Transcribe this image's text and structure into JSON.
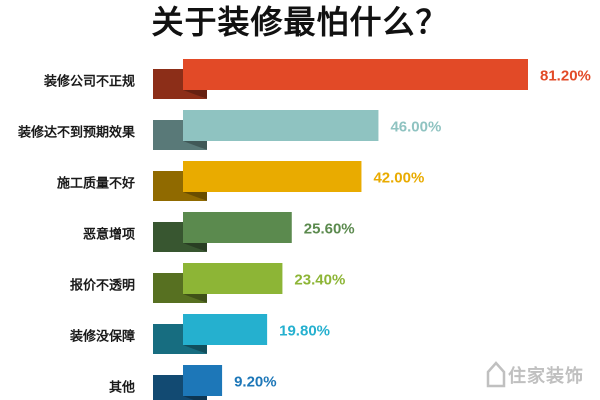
{
  "title": "关于装修最怕什么？",
  "chart_data": {
    "type": "bar",
    "orientation": "horizontal",
    "title": "关于装修最怕什么？",
    "categories": [
      "装修公司不正规",
      "装修达不到预期效果",
      "施工质量不好",
      "恶意增项",
      "报价不透明",
      "装修没保障",
      "其他"
    ],
    "values": [
      81.2,
      46.0,
      42.0,
      25.6,
      23.4,
      19.8,
      9.2
    ],
    "labels": [
      "81.20%",
      "46.00%",
      "42.00%",
      "25.60%",
      "23.40%",
      "19.80%",
      "9.20%"
    ],
    "colors": [
      "#e24a27",
      "#8fc3c1",
      "#e9ab00",
      "#5b8a4e",
      "#8db536",
      "#25b0cf",
      "#1d77b8"
    ],
    "value_unit": "%",
    "xlim": [
      0,
      100
    ],
    "grid": false,
    "legend": "none"
  },
  "watermark": "住家装饰"
}
